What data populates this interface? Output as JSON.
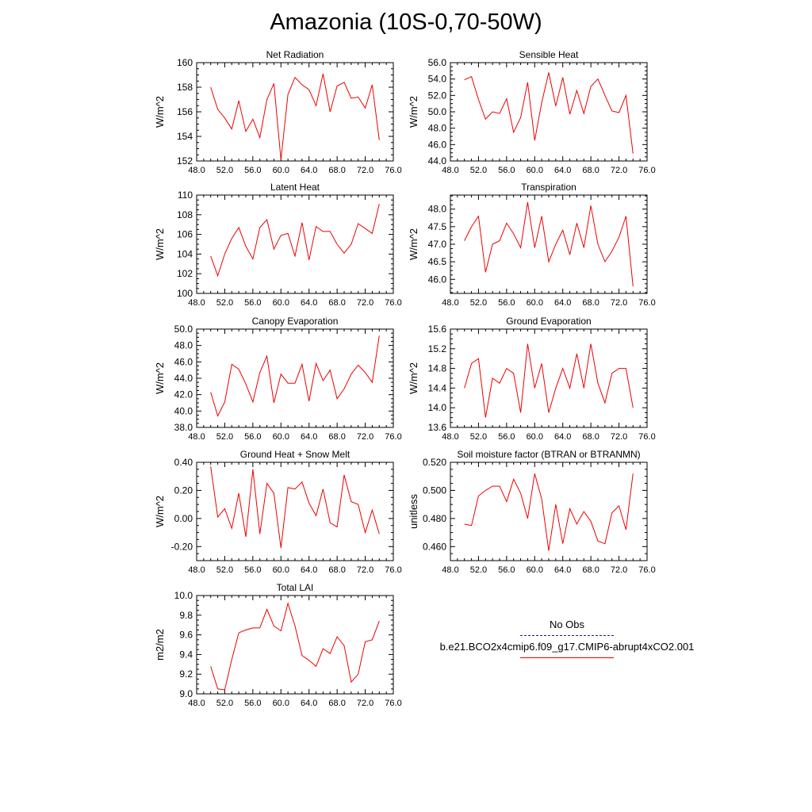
{
  "title": "Amazonia (10S-0,70-50W)",
  "legend": {
    "items": [
      {
        "label": "No Obs",
        "style": "dashed",
        "color": "#1b1b8f"
      },
      {
        "label": "b.e21.BCO2x4cmip6.f09_g17.CMIP6-abrupt4xCO2.001",
        "style": "solid",
        "color": "#ee0000"
      }
    ]
  },
  "line_color": "#ee0000",
  "chart_data": [
    {
      "type": "line",
      "title": "Net Radiation",
      "ylabel": "W/m^2",
      "xlim": [
        48,
        76
      ],
      "ylim": [
        152,
        160
      ],
      "xticks": [
        "48.0",
        "52.0",
        "56.0",
        "60.0",
        "64.0",
        "68.0",
        "72.0",
        "76.0"
      ],
      "yticks": [
        "152",
        "154",
        "156",
        "158",
        "160"
      ],
      "x": [
        50,
        51,
        52,
        53,
        54,
        55,
        56,
        57,
        58,
        59,
        60,
        61,
        62,
        63,
        64,
        65,
        66,
        67,
        68,
        69,
        70,
        71,
        72,
        73,
        74
      ],
      "values": [
        158.0,
        156.2,
        155.5,
        154.6,
        156.9,
        154.4,
        155.4,
        153.9,
        157.0,
        158.3,
        152.1,
        157.4,
        158.8,
        158.2,
        157.8,
        156.5,
        159.1,
        156.0,
        158.1,
        158.4,
        157.1,
        157.2,
        156.3,
        158.2,
        153.7
      ]
    },
    {
      "type": "line",
      "title": "Sensible Heat",
      "ylabel": "W/m^2",
      "xlim": [
        48,
        76
      ],
      "ylim": [
        44,
        56
      ],
      "xticks": [
        "48.0",
        "52.0",
        "56.0",
        "60.0",
        "64.0",
        "68.0",
        "72.0",
        "76.0"
      ],
      "yticks": [
        "44.0",
        "46.0",
        "48.0",
        "50.0",
        "52.0",
        "54.0",
        "56.0"
      ],
      "x": [
        50,
        51,
        52,
        53,
        54,
        55,
        56,
        57,
        58,
        59,
        60,
        61,
        62,
        63,
        64,
        65,
        66,
        67,
        68,
        69,
        70,
        71,
        72,
        73,
        74
      ],
      "values": [
        53.9,
        54.3,
        51.5,
        49.1,
        50.0,
        49.8,
        51.6,
        47.5,
        49.3,
        53.6,
        46.5,
        51.1,
        54.8,
        50.7,
        54.2,
        49.7,
        52.6,
        49.8,
        53.1,
        54.0,
        52.0,
        50.1,
        49.9,
        52.0,
        44.9
      ]
    },
    {
      "type": "line",
      "title": "Latent Heat",
      "ylabel": "W/m^2",
      "xlim": [
        48,
        76
      ],
      "ylim": [
        100,
        110
      ],
      "xticks": [
        "48.0",
        "52.0",
        "56.0",
        "60.0",
        "64.0",
        "68.0",
        "72.0",
        "76.0"
      ],
      "yticks": [
        "100",
        "102",
        "104",
        "106",
        "108",
        "110"
      ],
      "x": [
        50,
        51,
        52,
        53,
        54,
        55,
        56,
        57,
        58,
        59,
        60,
        61,
        62,
        63,
        64,
        65,
        66,
        67,
        68,
        69,
        70,
        71,
        72,
        73,
        74
      ],
      "values": [
        103.8,
        101.8,
        104.0,
        105.6,
        106.7,
        104.8,
        103.5,
        106.7,
        107.5,
        104.5,
        105.9,
        106.1,
        103.8,
        107.2,
        103.4,
        106.8,
        106.3,
        106.3,
        105.0,
        104.1,
        105.0,
        107.1,
        106.6,
        106.1,
        109.1
      ]
    },
    {
      "type": "line",
      "title": "Transpiration",
      "ylabel": "W/m^2",
      "xlim": [
        48,
        76
      ],
      "ylim": [
        45.6,
        48.4
      ],
      "xticks": [
        "48.0",
        "52.0",
        "56.0",
        "60.0",
        "64.0",
        "68.0",
        "72.0",
        "76.0"
      ],
      "yticks": [
        "46.0",
        "46.5",
        "47.0",
        "47.5",
        "48.0"
      ],
      "x": [
        50,
        51,
        52,
        53,
        54,
        55,
        56,
        57,
        58,
        59,
        60,
        61,
        62,
        63,
        64,
        65,
        66,
        67,
        68,
        69,
        70,
        71,
        72,
        73,
        74
      ],
      "values": [
        47.1,
        47.5,
        47.8,
        46.2,
        47.0,
        47.1,
        47.6,
        47.3,
        46.9,
        48.2,
        46.9,
        47.8,
        46.5,
        47.0,
        47.4,
        46.7,
        47.6,
        46.9,
        48.1,
        47.0,
        46.5,
        46.8,
        47.2,
        47.8,
        45.8
      ]
    },
    {
      "type": "line",
      "title": "Canopy Evaporation",
      "ylabel": "W/m^2",
      "xlim": [
        48,
        76
      ],
      "ylim": [
        38,
        50
      ],
      "xticks": [
        "48.0",
        "52.0",
        "56.0",
        "60.0",
        "64.0",
        "68.0",
        "72.0",
        "76.0"
      ],
      "yticks": [
        "38.0",
        "40.0",
        "42.0",
        "44.0",
        "46.0",
        "48.0",
        "50.0"
      ],
      "x": [
        50,
        51,
        52,
        53,
        54,
        55,
        56,
        57,
        58,
        59,
        60,
        61,
        62,
        63,
        64,
        65,
        66,
        67,
        68,
        69,
        70,
        71,
        72,
        73,
        74
      ],
      "values": [
        42.3,
        39.4,
        41.1,
        45.7,
        45.1,
        43.3,
        41.1,
        44.7,
        46.7,
        41.0,
        44.5,
        43.4,
        43.4,
        45.7,
        41.2,
        45.8,
        43.7,
        45.0,
        41.5,
        42.7,
        44.5,
        45.6,
        44.7,
        43.5,
        49.2
      ]
    },
    {
      "type": "line",
      "title": "Ground Evaporation",
      "ylabel": "W/m^2",
      "xlim": [
        48,
        76
      ],
      "ylim": [
        13.6,
        15.6
      ],
      "xticks": [
        "48.0",
        "52.0",
        "56.0",
        "60.0",
        "64.0",
        "68.0",
        "72.0",
        "76.0"
      ],
      "yticks": [
        "13.6",
        "14.0",
        "14.4",
        "14.8",
        "15.2",
        "15.6"
      ],
      "x": [
        50,
        51,
        52,
        53,
        54,
        55,
        56,
        57,
        58,
        59,
        60,
        61,
        62,
        63,
        64,
        65,
        66,
        67,
        68,
        69,
        70,
        71,
        72,
        73,
        74
      ],
      "values": [
        14.4,
        14.9,
        15.0,
        13.8,
        14.6,
        14.5,
        14.8,
        14.7,
        13.9,
        15.3,
        14.4,
        14.9,
        13.9,
        14.4,
        14.8,
        14.4,
        15.1,
        14.4,
        15.3,
        14.5,
        14.1,
        14.7,
        14.8,
        14.8,
        14.0
      ]
    },
    {
      "type": "line",
      "title": "Ground Heat + Snow Melt",
      "ylabel": "W/m^2",
      "xlim": [
        48,
        76
      ],
      "ylim": [
        -0.3,
        0.4
      ],
      "xticks": [
        "48.0",
        "52.0",
        "56.0",
        "60.0",
        "64.0",
        "68.0",
        "72.0",
        "76.0"
      ],
      "yticks": [
        "-0.20",
        "0.00",
        "0.20",
        "0.40"
      ],
      "x": [
        50,
        51,
        52,
        53,
        54,
        55,
        56,
        57,
        58,
        59,
        60,
        61,
        62,
        63,
        64,
        65,
        66,
        67,
        68,
        69,
        70,
        71,
        72,
        73,
        74
      ],
      "values": [
        0.37,
        0.01,
        0.07,
        -0.07,
        0.18,
        -0.13,
        0.35,
        -0.11,
        0.25,
        0.18,
        -0.21,
        0.22,
        0.21,
        0.26,
        0.11,
        0.02,
        0.21,
        -0.03,
        -0.06,
        0.31,
        0.12,
        0.1,
        -0.1,
        0.06,
        -0.11
      ]
    },
    {
      "type": "line",
      "title": "Soil moisture factor (BTRAN or BTRANMN)",
      "ylabel": "unitless",
      "xlim": [
        48,
        76
      ],
      "ylim": [
        0.45,
        0.52
      ],
      "xticks": [
        "48.0",
        "52.0",
        "56.0",
        "60.0",
        "64.0",
        "68.0",
        "72.0",
        "76.0"
      ],
      "yticks": [
        "0.460",
        "0.480",
        "0.500",
        "0.520"
      ],
      "x": [
        50,
        51,
        52,
        53,
        54,
        55,
        56,
        57,
        58,
        59,
        60,
        61,
        62,
        63,
        64,
        65,
        66,
        67,
        68,
        69,
        70,
        71,
        72,
        73,
        74
      ],
      "values": [
        0.476,
        0.475,
        0.496,
        0.5,
        0.503,
        0.503,
        0.492,
        0.508,
        0.498,
        0.48,
        0.512,
        0.494,
        0.457,
        0.49,
        0.462,
        0.487,
        0.476,
        0.485,
        0.478,
        0.464,
        0.462,
        0.484,
        0.489,
        0.472,
        0.512
      ]
    },
    {
      "type": "line",
      "title": "Total LAI",
      "ylabel": "m2/m2",
      "xlim": [
        48,
        76
      ],
      "ylim": [
        9.0,
        10.0
      ],
      "xticks": [
        "48.0",
        "52.0",
        "56.0",
        "60.0",
        "64.0",
        "68.0",
        "72.0",
        "76.0"
      ],
      "yticks": [
        "9.0",
        "9.2",
        "9.4",
        "9.6",
        "9.8",
        "10.0"
      ],
      "x": [
        50,
        51,
        52,
        53,
        54,
        55,
        56,
        57,
        58,
        59,
        60,
        61,
        62,
        63,
        64,
        65,
        66,
        67,
        68,
        69,
        70,
        71,
        72,
        73,
        74
      ],
      "values": [
        9.28,
        9.05,
        9.04,
        9.35,
        9.62,
        9.65,
        9.67,
        9.67,
        9.86,
        9.69,
        9.64,
        9.92,
        9.69,
        9.39,
        9.34,
        9.28,
        9.46,
        9.41,
        9.58,
        9.49,
        9.12,
        9.2,
        9.53,
        9.55,
        9.74
      ]
    }
  ]
}
